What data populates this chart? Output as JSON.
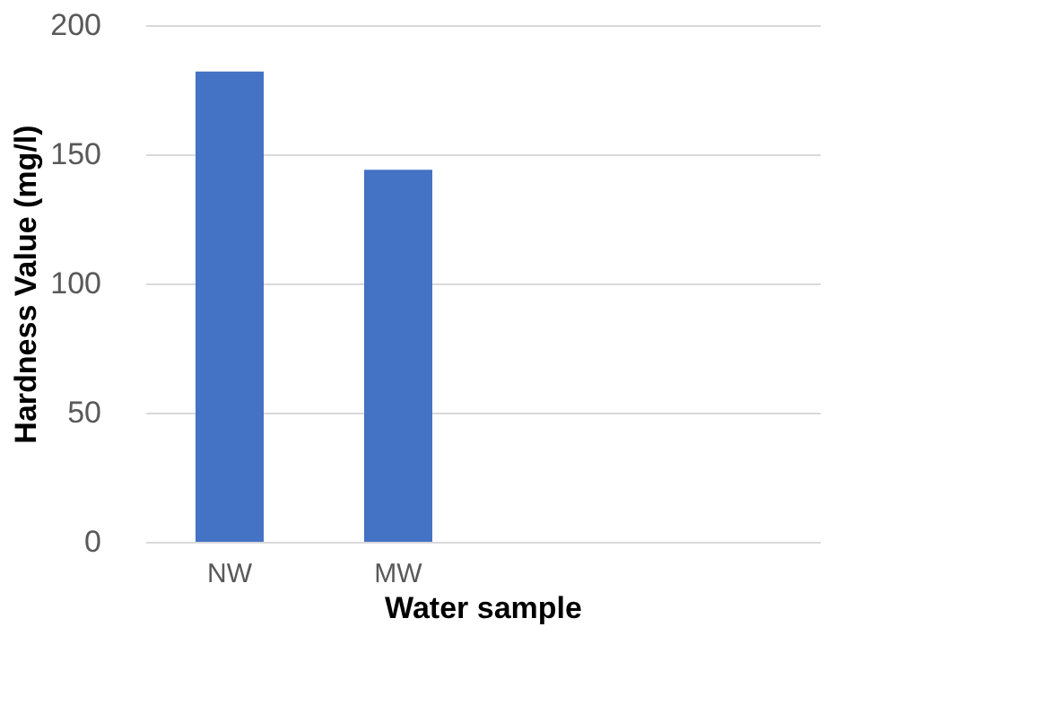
{
  "chart_data": {
    "type": "bar",
    "xlabel": "Water sample",
    "ylabel": "Hardness Value (mg/l)",
    "categories": [
      "NW",
      "MW",
      null,
      null
    ],
    "values": [
      182,
      144,
      null,
      null
    ],
    "color": "#4472c4",
    "ylim": [
      0,
      200
    ],
    "yticks": [
      0,
      50,
      100,
      150,
      200
    ],
    "grid": "y"
  }
}
